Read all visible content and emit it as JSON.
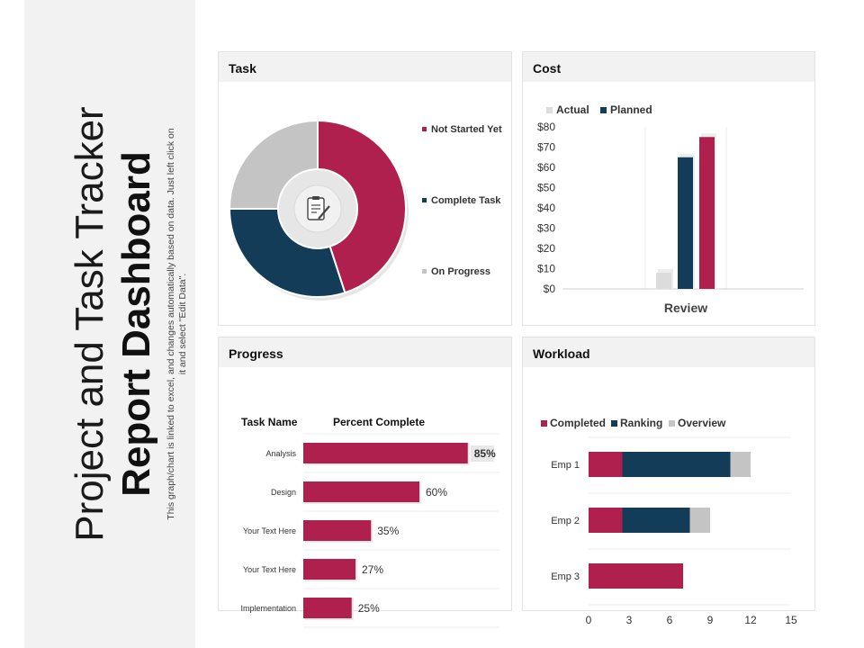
{
  "title": {
    "line1": "Project and Task Tracker",
    "line2": "Report Dashboard",
    "description": "This graph/chart is linked to excel, and changes automatically based on data. Just left click on it and select \"Edit Data\"."
  },
  "colors": {
    "crimson": "#b0204f",
    "navy": "#133c58",
    "gray": "#c4c4c4",
    "light": "#dcdcdc"
  },
  "icons": {
    "center": "clipboard-pen-icon"
  },
  "panels": {
    "task": "Task",
    "cost": "Cost",
    "progress": "Progress",
    "workload": "Workload"
  },
  "chart_data": [
    {
      "id": "task",
      "type": "pie",
      "title": "Task",
      "slices": [
        {
          "label": "Not Started Yet",
          "value": 45,
          "color": "#b0204f"
        },
        {
          "label": "Complete Task",
          "value": 30,
          "color": "#133c58"
        },
        {
          "label": "On Progress",
          "value": 25,
          "color": "#c4c4c4"
        }
      ]
    },
    {
      "id": "cost",
      "type": "bar",
      "title": "Cost",
      "categories": [
        "Review"
      ],
      "xlabel": "Review",
      "series": [
        {
          "name": "Actual",
          "values": [
            8
          ],
          "color": "#dcdcdc"
        },
        {
          "name": "Planned",
          "values": [
            65
          ],
          "color": "#133c58"
        },
        {
          "name": "",
          "values": [
            75
          ],
          "color": "#b0204f"
        }
      ],
      "ylim": [
        0,
        80
      ],
      "yticks": [
        "$0",
        "$10",
        "$20",
        "$30",
        "$40",
        "$50",
        "$60",
        "$70",
        "$80"
      ]
    },
    {
      "id": "progress",
      "type": "bar",
      "title": "Progress",
      "column_headers": [
        "Task Name",
        "Percent Complete"
      ],
      "categories": [
        "Analysis",
        "Design",
        "Your Text Here",
        "Your Text Here",
        "Implementation"
      ],
      "values": [
        85,
        60,
        35,
        27,
        25
      ],
      "labels": [
        "85%",
        "60%",
        "35%",
        "27%",
        "25%"
      ],
      "xlim": [
        0,
        100
      ]
    },
    {
      "id": "workload",
      "type": "bar",
      "title": "Workload",
      "categories": [
        "Emp 1",
        "Emp 2",
        "Emp 3"
      ],
      "series": [
        {
          "name": "Completed",
          "values": [
            2.5,
            2.5,
            7
          ],
          "color": "#b0204f"
        },
        {
          "name": "Ranking",
          "values": [
            8,
            5,
            0
          ],
          "color": "#133c58"
        },
        {
          "name": "Overview",
          "values": [
            1.5,
            1.5,
            0
          ],
          "color": "#c4c4c4"
        }
      ],
      "xlim": [
        0,
        15
      ],
      "xticks": [
        "0",
        "3",
        "6",
        "9",
        "12",
        "15"
      ]
    }
  ]
}
